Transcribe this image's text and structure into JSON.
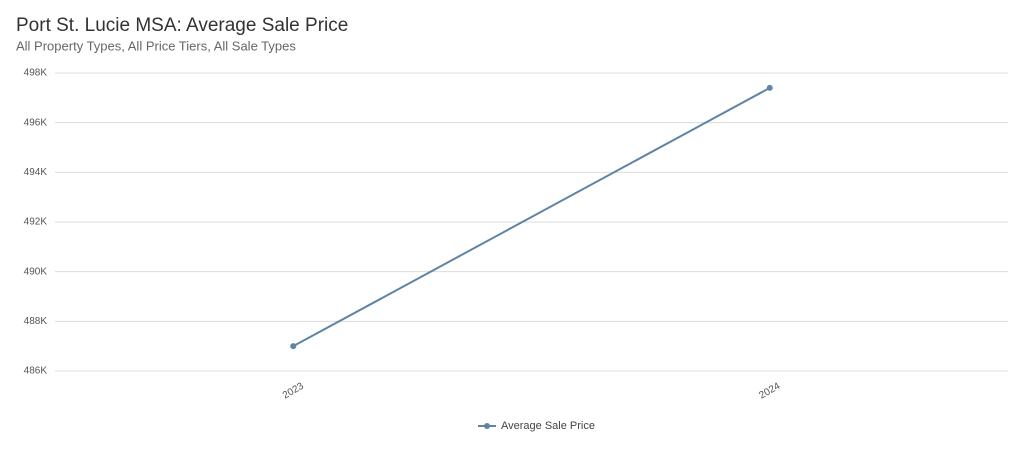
{
  "chart_data": {
    "type": "line",
    "title": "Port St. Lucie MSA: Average Sale Price",
    "subtitle": "All Property Types, All Price Tiers, All Sale Types",
    "categories": [
      "2023",
      "2024"
    ],
    "series": [
      {
        "name": "Average Sale Price",
        "color": "#5f84a6",
        "values": [
          487000,
          497400
        ]
      }
    ],
    "ylim": [
      486000,
      498000
    ],
    "yticks": [
      {
        "value": 486000,
        "label": "486K"
      },
      {
        "value": 488000,
        "label": "488K"
      },
      {
        "value": 490000,
        "label": "490K"
      },
      {
        "value": 492000,
        "label": "492K"
      },
      {
        "value": 494000,
        "label": "494K"
      },
      {
        "value": 496000,
        "label": "496K"
      },
      {
        "value": 498000,
        "label": "498K"
      }
    ],
    "grid": true,
    "legend": "bottom"
  }
}
